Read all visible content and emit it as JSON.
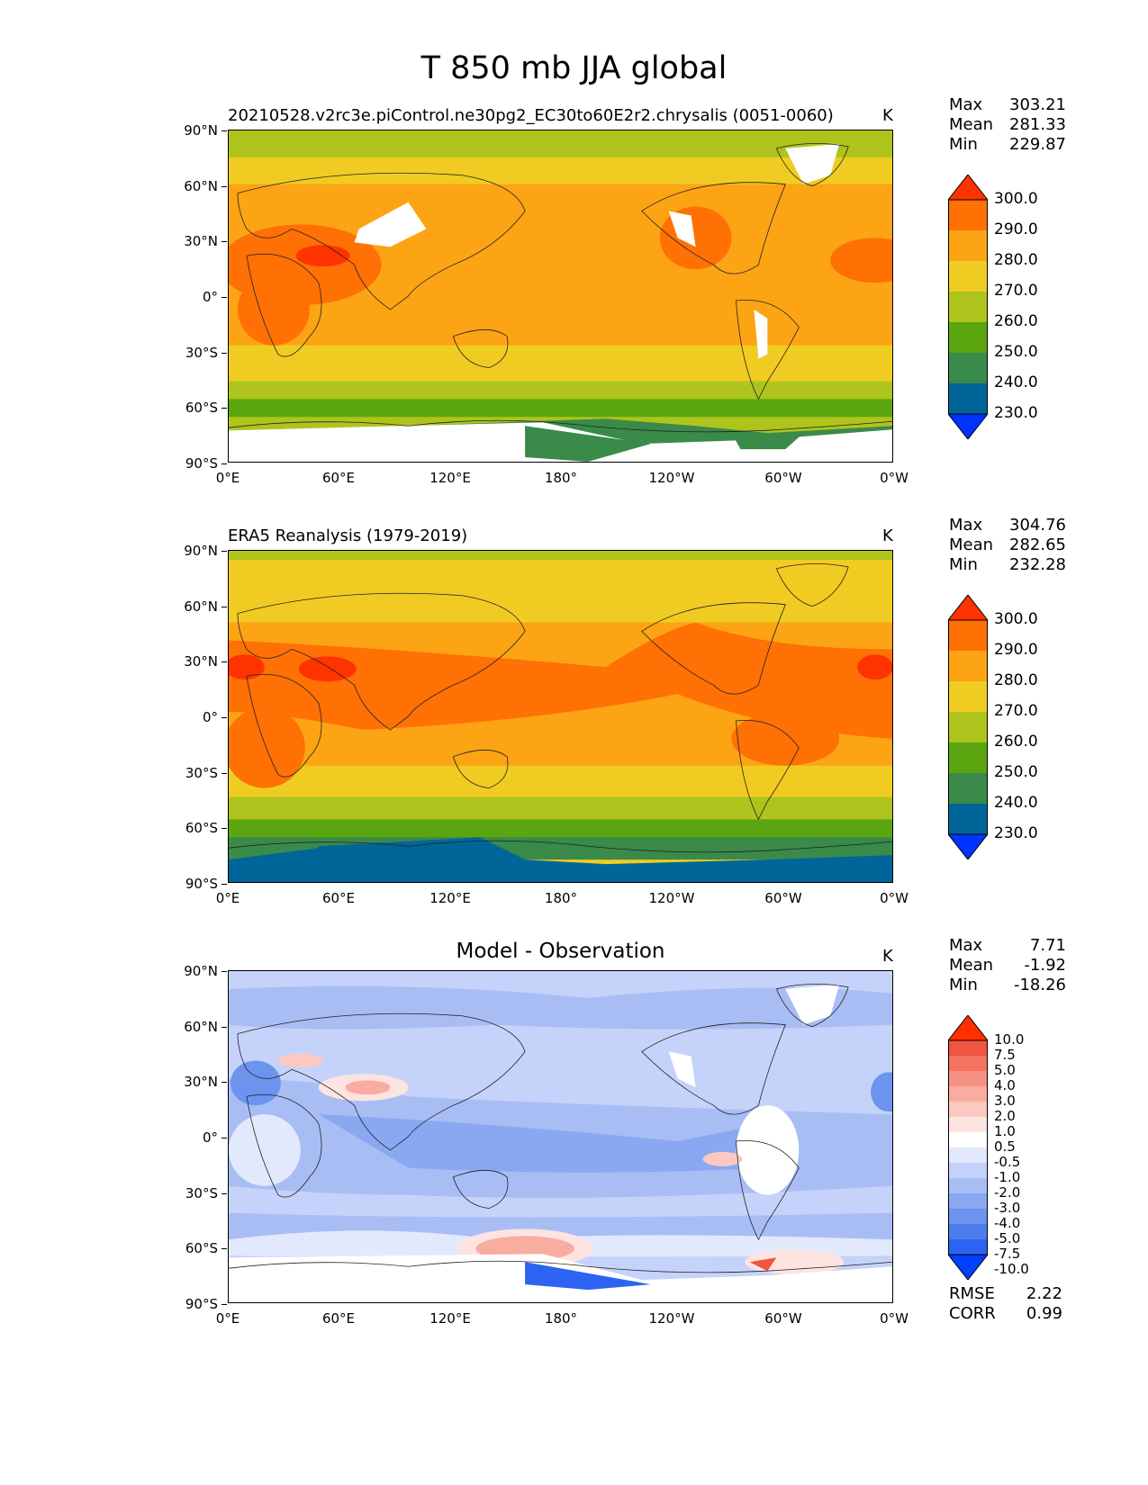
{
  "figure": {
    "title": "T 850 mb JJA global",
    "latitude_ticks": [
      "90°N",
      "60°N",
      "30°N",
      "0°",
      "30°S",
      "60°S",
      "90°S"
    ],
    "longitude_ticks": [
      "0°E",
      "60°E",
      "120°E",
      "180°",
      "120°W",
      "60°W",
      "0°W"
    ]
  },
  "panels": [
    {
      "title": "20210528.v2rc3e.piControl.ne30pg2_EC30to60E2r2.chrysalis (0051-0060)",
      "title_position": "left",
      "units": "K",
      "stats": {
        "max_label": "Max",
        "max": "303.21",
        "mean_label": "Mean",
        "mean": "281.33",
        "min_label": "Min",
        "min": "229.87"
      },
      "colorbar_labels": [
        "300.0",
        "290.0",
        "280.0",
        "270.0",
        "260.0",
        "250.0",
        "240.0",
        "230.0"
      ]
    },
    {
      "title": "ERA5 Reanalysis (1979-2019)",
      "title_position": "left",
      "units": "K",
      "stats": {
        "max_label": "Max",
        "max": "304.76",
        "mean_label": "Mean",
        "mean": "282.65",
        "min_label": "Min",
        "min": "232.28"
      },
      "colorbar_labels": [
        "300.0",
        "290.0",
        "280.0",
        "270.0",
        "260.0",
        "250.0",
        "240.0",
        "230.0"
      ]
    },
    {
      "title": "Model - Observation",
      "title_position": "center",
      "units": "K",
      "stats": {
        "max_label": "Max",
        "max": "7.71",
        "mean_label": "Mean",
        "mean": "-1.92",
        "min_label": "Min",
        "min": "-18.26"
      },
      "colorbar_labels": [
        "10.0",
        "7.5",
        "5.0",
        "4.0",
        "3.0",
        "2.0",
        "1.0",
        "0.5",
        "-0.5",
        "-1.0",
        "-2.0",
        "-3.0",
        "-4.0",
        "-5.0",
        "-7.5",
        "-10.0"
      ],
      "metrics": {
        "rmse_label": "RMSE",
        "rmse": "2.22",
        "corr_label": "CORR",
        "corr": "0.99"
      }
    }
  ],
  "palettes": {
    "temperature": [
      "#0033ff",
      "#006699",
      "#3a8a4a",
      "#5aa510",
      "#aec41c",
      "#f0cc22",
      "#fca414",
      "#ff7005",
      "#ff3300"
    ],
    "difference": [
      "#0040ff",
      "#2d63f2",
      "#4c7ced",
      "#6c93ed",
      "#8aa8f2",
      "#a9bdf5",
      "#c5d3fa",
      "#e3e9fd",
      "#ffffff",
      "#fde4e0",
      "#fcc8c0",
      "#f9aca0",
      "#f69080",
      "#f37360",
      "#f05540",
      "#ff3000"
    ]
  }
}
